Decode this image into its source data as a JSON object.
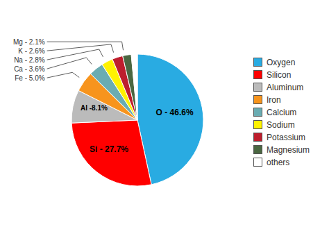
{
  "chart_data": {
    "type": "pie",
    "categories": [
      "Oxygen",
      "Silicon",
      "Aluminum",
      "Iron",
      "Calcium",
      "Sodium",
      "Potassium",
      "Magnesium",
      "others"
    ],
    "values": [
      46.6,
      27.7,
      8.1,
      5.0,
      3.6,
      2.8,
      2.6,
      2.1,
      1.5
    ],
    "colors": [
      "#29ABE2",
      "#FF0000",
      "#BBBBBB",
      "#F7941D",
      "#6AACB2",
      "#FFF200",
      "#BE1E2D",
      "#4A6741",
      "#FFFFFF"
    ],
    "value_labels": [
      "O - 46.6%",
      "Si - 27.7%",
      "Al -8.1%",
      "Fe - 5.0%",
      "Ca - 3.6%",
      "Na - 2.8%",
      "K - 2.6%",
      "Mg - 2.1%",
      null
    ],
    "data_labels": true,
    "legend": "right"
  }
}
